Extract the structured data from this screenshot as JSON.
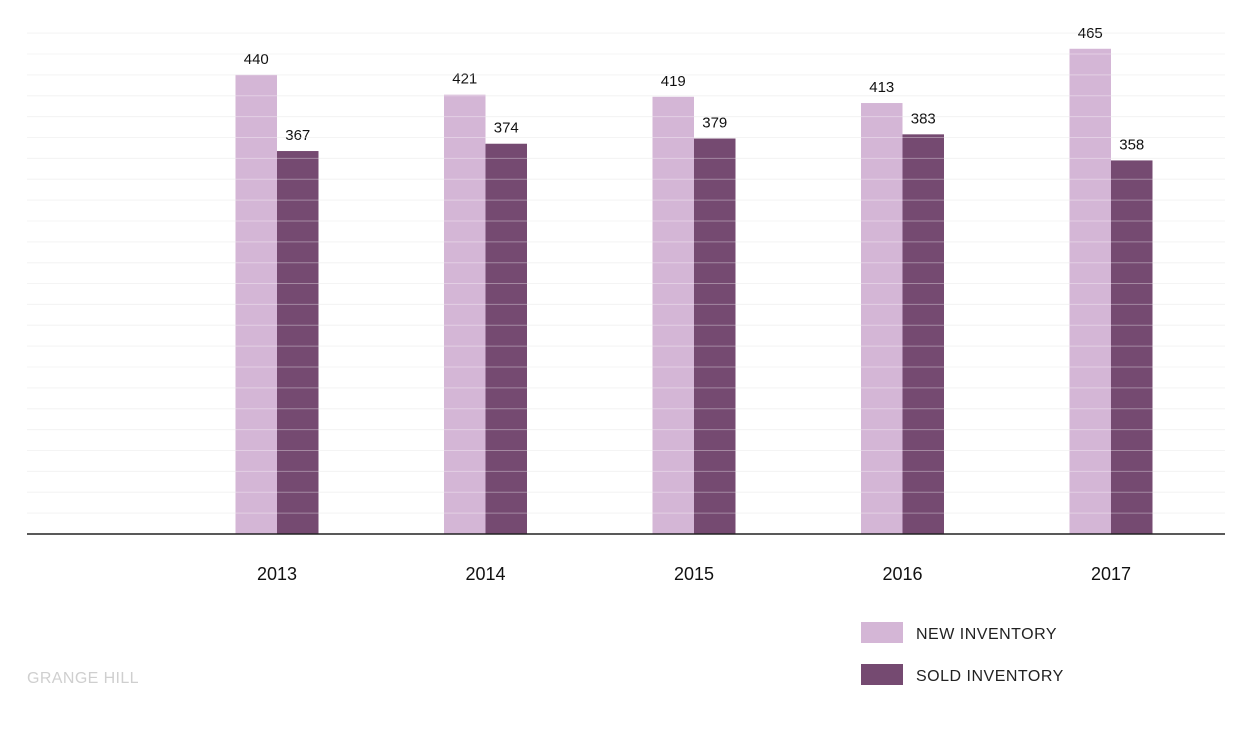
{
  "chart_data": {
    "type": "bar",
    "categories": [
      "2013",
      "2014",
      "2015",
      "2016",
      "2017"
    ],
    "series": [
      {
        "name": "NEW INVENTORY",
        "values": [
          440,
          421,
          419,
          413,
          465
        ],
        "color": "#d4b6d6"
      },
      {
        "name": "SOLD INVENTORY",
        "values": [
          367,
          374,
          379,
          383,
          358
        ],
        "color": "#754a71"
      }
    ],
    "title": "",
    "xlabel": "",
    "ylabel": "",
    "ylim": [
      0,
      510
    ],
    "grid": true,
    "legend_position": "bottom-right",
    "data_labels": true
  },
  "watermark": "GRANGE HILL",
  "colors": {
    "axis": "#222222",
    "grid": "#eeeeee",
    "label_text": "#111111"
  }
}
